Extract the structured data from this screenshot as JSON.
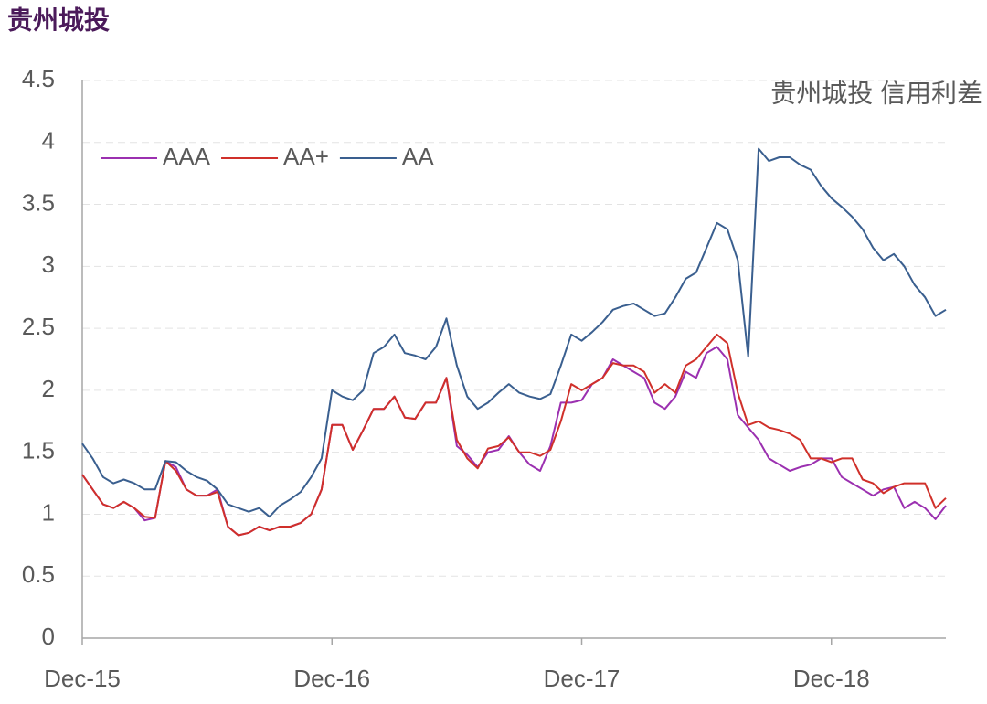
{
  "chart_data": {
    "type": "line",
    "title": "贵州城投",
    "annotation": "贵州城投 信用利差",
    "categories": [
      "Dec-15",
      null,
      null,
      null,
      null,
      null,
      null,
      null,
      null,
      null,
      null,
      null,
      null,
      null,
      null,
      null,
      null,
      null,
      null,
      null,
      null,
      null,
      null,
      null,
      "Dec-16",
      null,
      null,
      null,
      null,
      null,
      null,
      null,
      null,
      null,
      null,
      null,
      null,
      null,
      null,
      null,
      null,
      null,
      null,
      null,
      null,
      null,
      null,
      null,
      "Dec-17",
      null,
      null,
      null,
      null,
      null,
      null,
      null,
      null,
      null,
      null,
      null,
      null,
      null,
      null,
      null,
      null,
      null,
      null,
      null,
      null,
      null,
      null,
      null,
      "Dec-18",
      null,
      null,
      null,
      null,
      null,
      null,
      null,
      null,
      null,
      null,
      null
    ],
    "series": [
      {
        "name": "AAA",
        "color": "#9b30b0",
        "values": [
          1.32,
          1.2,
          1.08,
          1.05,
          1.1,
          1.05,
          0.95,
          0.97,
          1.43,
          1.38,
          1.2,
          1.15,
          1.15,
          1.2,
          0.9,
          0.83,
          0.85,
          0.9,
          0.87,
          0.9,
          0.9,
          0.93,
          1.0,
          1.2,
          1.72,
          1.72,
          1.52,
          1.68,
          1.85,
          1.85,
          1.95,
          1.78,
          1.77,
          1.9,
          1.9,
          2.1,
          1.55,
          1.48,
          1.38,
          1.5,
          1.52,
          1.63,
          1.5,
          1.4,
          1.35,
          1.55,
          1.9,
          1.9,
          1.92,
          2.05,
          2.1,
          2.25,
          2.2,
          2.15,
          2.1,
          1.9,
          1.85,
          1.95,
          2.15,
          2.1,
          2.3,
          2.35,
          2.25,
          1.8,
          1.7,
          1.6,
          1.45,
          1.4,
          1.35,
          1.38,
          1.4,
          1.45,
          1.45,
          1.3,
          1.25,
          1.2,
          1.15,
          1.2,
          1.22,
          1.05,
          1.1,
          1.05,
          0.96,
          1.07
        ]
      },
      {
        "name": "AA+",
        "color": "#d0302a",
        "values": [
          1.32,
          1.2,
          1.08,
          1.05,
          1.1,
          1.05,
          0.98,
          0.97,
          1.43,
          1.35,
          1.2,
          1.15,
          1.15,
          1.18,
          0.9,
          0.83,
          0.85,
          0.9,
          0.87,
          0.9,
          0.9,
          0.93,
          1.0,
          1.2,
          1.72,
          1.72,
          1.52,
          1.68,
          1.85,
          1.85,
          1.95,
          1.78,
          1.77,
          1.9,
          1.9,
          2.1,
          1.6,
          1.45,
          1.37,
          1.53,
          1.55,
          1.62,
          1.5,
          1.5,
          1.47,
          1.52,
          1.75,
          2.05,
          2.0,
          2.05,
          2.1,
          2.22,
          2.2,
          2.2,
          2.15,
          1.98,
          2.05,
          1.98,
          2.2,
          2.25,
          2.35,
          2.45,
          2.38,
          1.98,
          1.72,
          1.75,
          1.7,
          1.68,
          1.65,
          1.6,
          1.45,
          1.45,
          1.42,
          1.45,
          1.45,
          1.28,
          1.25,
          1.17,
          1.22,
          1.25,
          1.25,
          1.25,
          1.05,
          1.13
        ]
      },
      {
        "name": "AA",
        "color": "#3a5f8f",
        "values": [
          1.57,
          1.45,
          1.3,
          1.25,
          1.28,
          1.25,
          1.2,
          1.2,
          1.43,
          1.42,
          1.35,
          1.3,
          1.27,
          1.2,
          1.08,
          1.05,
          1.02,
          1.05,
          0.98,
          1.07,
          1.12,
          1.18,
          1.3,
          1.45,
          2.0,
          1.95,
          1.92,
          2.0,
          2.3,
          2.35,
          2.45,
          2.3,
          2.28,
          2.25,
          2.35,
          2.58,
          2.2,
          1.95,
          1.85,
          1.9,
          1.98,
          2.05,
          1.98,
          1.95,
          1.93,
          1.97,
          2.2,
          2.45,
          2.4,
          2.47,
          2.55,
          2.65,
          2.68,
          2.7,
          2.65,
          2.6,
          2.62,
          2.75,
          2.9,
          2.95,
          3.15,
          3.35,
          3.3,
          3.05,
          2.27,
          3.95,
          3.85,
          3.88,
          3.88,
          3.82,
          3.78,
          3.65,
          3.55,
          3.48,
          3.4,
          3.3,
          3.15,
          3.05,
          3.1,
          3.0,
          2.85,
          2.75,
          2.6,
          2.65
        ]
      }
    ],
    "ylim": [
      0,
      4.5
    ],
    "yticks": [
      0,
      0.5,
      1,
      1.5,
      2,
      2.5,
      3,
      3.5,
      4,
      4.5
    ],
    "grid": true,
    "legend": "upper left"
  }
}
